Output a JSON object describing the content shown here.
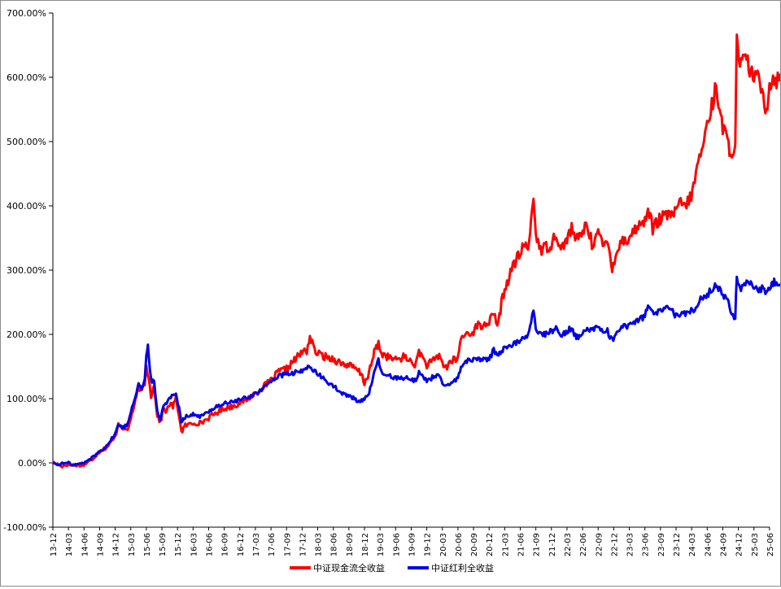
{
  "chart_data": {
    "type": "line",
    "title": "",
    "xlabel": "",
    "ylabel": "",
    "ylim": [
      -100,
      700
    ],
    "y_ticks": [
      -100,
      0,
      100,
      200,
      300,
      400,
      500,
      600,
      700
    ],
    "y_tick_labels": [
      "-100.00%",
      "0.00%",
      "100.00%",
      "200.00%",
      "300.00%",
      "400.00%",
      "500.00%",
      "600.00%",
      "700.00%"
    ],
    "x_tick_labels": [
      "13-12",
      "14-03",
      "14-06",
      "14-09",
      "14-12",
      "15-03",
      "15-06",
      "15-09",
      "15-12",
      "16-03",
      "16-06",
      "16-09",
      "16-12",
      "17-03",
      "17-06",
      "17-09",
      "17-12",
      "18-03",
      "18-06",
      "18-09",
      "18-12",
      "19-03",
      "19-06",
      "19-09",
      "19-12",
      "20-03",
      "20-06",
      "20-09",
      "20-12",
      "21-03",
      "21-06",
      "21-09",
      "21-12",
      "22-03",
      "22-06",
      "22-09",
      "22-12",
      "23-03",
      "23-06",
      "23-09",
      "23-12",
      "24-03",
      "24-06",
      "24-09",
      "24-12",
      "25-03",
      "25-06"
    ],
    "legend_position": "bottom",
    "grid": false,
    "x_unit": "quarters since 13-12",
    "series": [
      {
        "name": "中证现金流全收益",
        "color": "#ff0000",
        "points": [
          [
            0,
            0
          ],
          [
            0.3,
            -2
          ],
          [
            0.6,
            -5
          ],
          [
            1,
            -2
          ],
          [
            1.3,
            -4
          ],
          [
            1.6,
            -3
          ],
          [
            2,
            -3
          ],
          [
            2.5,
            5
          ],
          [
            3,
            18
          ],
          [
            3.5,
            25
          ],
          [
            4,
            40
          ],
          [
            4.2,
            62
          ],
          [
            4.5,
            55
          ],
          [
            4.8,
            50
          ],
          [
            5,
            70
          ],
          [
            5.3,
            95
          ],
          [
            5.5,
            120
          ],
          [
            5.7,
            110
          ],
          [
            5.9,
            125
          ],
          [
            6,
            150
          ],
          [
            6.15,
            135
          ],
          [
            6.3,
            105
          ],
          [
            6.5,
            120
          ],
          [
            6.7,
            75
          ],
          [
            6.9,
            62
          ],
          [
            7.1,
            85
          ],
          [
            7.3,
            80
          ],
          [
            7.5,
            92
          ],
          [
            7.7,
            88
          ],
          [
            7.9,
            100
          ],
          [
            8.1,
            75
          ],
          [
            8.25,
            48
          ],
          [
            8.5,
            58
          ],
          [
            9,
            62
          ],
          [
            9.5,
            62
          ],
          [
            10,
            70
          ],
          [
            10.5,
            78
          ],
          [
            11,
            85
          ],
          [
            11.5,
            88
          ],
          [
            12,
            93
          ],
          [
            12.5,
            100
          ],
          [
            13,
            108
          ],
          [
            13.5,
            118
          ],
          [
            14,
            128
          ],
          [
            14.5,
            142
          ],
          [
            15,
            146
          ],
          [
            15.5,
            160
          ],
          [
            16,
            172
          ],
          [
            16.3,
            175
          ],
          [
            16.5,
            196
          ],
          [
            16.8,
            175
          ],
          [
            17,
            170
          ],
          [
            17.5,
            165
          ],
          [
            18,
            162
          ],
          [
            18.5,
            155
          ],
          [
            19,
            152
          ],
          [
            19.5,
            145
          ],
          [
            19.8,
            138
          ],
          [
            20,
            125
          ],
          [
            20.3,
            140
          ],
          [
            20.7,
            178
          ],
          [
            20.9,
            185
          ],
          [
            21.1,
            170
          ],
          [
            21.5,
            165
          ],
          [
            22,
            160
          ],
          [
            22.5,
            165
          ],
          [
            23,
            158
          ],
          [
            23.3,
            152
          ],
          [
            23.5,
            175
          ],
          [
            23.7,
            165
          ],
          [
            24,
            152
          ],
          [
            24.5,
            160
          ],
          [
            24.8,
            168
          ],
          [
            25,
            155
          ],
          [
            25.3,
            148
          ],
          [
            25.5,
            158
          ],
          [
            26,
            162
          ],
          [
            26.2,
            195
          ],
          [
            26.5,
            200
          ],
          [
            27,
            205
          ],
          [
            27.3,
            215
          ],
          [
            27.5,
            212
          ],
          [
            28,
            220
          ],
          [
            28.3,
            230
          ],
          [
            28.6,
            215
          ],
          [
            28.8,
            250
          ],
          [
            29,
            270
          ],
          [
            29.3,
            290
          ],
          [
            29.6,
            310
          ],
          [
            30,
            325
          ],
          [
            30.2,
            340
          ],
          [
            30.5,
            330
          ],
          [
            30.7,
            380
          ],
          [
            30.85,
            410
          ],
          [
            31,
            360
          ],
          [
            31.3,
            330
          ],
          [
            31.6,
            335
          ],
          [
            32,
            340
          ],
          [
            32.3,
            360
          ],
          [
            32.6,
            330
          ],
          [
            33,
            350
          ],
          [
            33.3,
            365
          ],
          [
            33.6,
            345
          ],
          [
            34,
            360
          ],
          [
            34.3,
            372
          ],
          [
            34.6,
            340
          ],
          [
            35,
            360
          ],
          [
            35.3,
            335
          ],
          [
            35.6,
            345
          ],
          [
            35.9,
            305
          ],
          [
            36.2,
            330
          ],
          [
            36.5,
            345
          ],
          [
            37,
            350
          ],
          [
            37.5,
            368
          ],
          [
            38,
            375
          ],
          [
            38.2,
            400
          ],
          [
            38.5,
            365
          ],
          [
            39,
            380
          ],
          [
            39.5,
            385
          ],
          [
            40,
            390
          ],
          [
            40.3,
            405
          ],
          [
            40.6,
            400
          ],
          [
            40.9,
            410
          ],
          [
            41.2,
            440
          ],
          [
            41.5,
            475
          ],
          [
            41.8,
            500
          ],
          [
            42,
            530
          ],
          [
            42.3,
            555
          ],
          [
            42.5,
            580
          ],
          [
            42.8,
            560
          ],
          [
            43,
            520
          ],
          [
            43.3,
            500
          ],
          [
            43.5,
            485
          ],
          [
            43.8,
            492
          ],
          [
            43.9,
            655
          ],
          [
            44.1,
            610
          ],
          [
            44.3,
            630
          ],
          [
            44.6,
            620
          ],
          [
            45,
            600
          ],
          [
            45.3,
            595
          ],
          [
            45.6,
            580
          ],
          [
            45.8,
            545
          ],
          [
            46,
            590
          ],
          [
            46.3,
            600
          ],
          [
            46.6,
            595
          ],
          [
            46.8,
            600
          ]
        ]
      },
      {
        "name": "中证红利全收益",
        "color": "#0000e6",
        "points": [
          [
            0,
            0
          ],
          [
            0.3,
            -3
          ],
          [
            0.6,
            -1
          ],
          [
            1,
            0
          ],
          [
            1.3,
            -3
          ],
          [
            1.6,
            -2
          ],
          [
            2,
            0
          ],
          [
            2.5,
            8
          ],
          [
            3,
            18
          ],
          [
            3.5,
            28
          ],
          [
            4,
            45
          ],
          [
            4.2,
            60
          ],
          [
            4.5,
            55
          ],
          [
            4.8,
            60
          ],
          [
            5,
            80
          ],
          [
            5.3,
            105
          ],
          [
            5.5,
            125
          ],
          [
            5.7,
            115
          ],
          [
            5.9,
            130
          ],
          [
            6,
            165
          ],
          [
            6.1,
            180
          ],
          [
            6.3,
            130
          ],
          [
            6.5,
            125
          ],
          [
            6.7,
            80
          ],
          [
            6.9,
            68
          ],
          [
            7.1,
            90
          ],
          [
            7.3,
            95
          ],
          [
            7.5,
            100
          ],
          [
            7.7,
            105
          ],
          [
            7.9,
            110
          ],
          [
            8.1,
            85
          ],
          [
            8.25,
            65
          ],
          [
            8.5,
            72
          ],
          [
            9,
            75
          ],
          [
            9.5,
            72
          ],
          [
            10,
            80
          ],
          [
            10.5,
            88
          ],
          [
            11,
            92
          ],
          [
            11.5,
            95
          ],
          [
            12,
            98
          ],
          [
            12.5,
            102
          ],
          [
            13,
            108
          ],
          [
            13.5,
            115
          ],
          [
            14,
            128
          ],
          [
            14.5,
            135
          ],
          [
            15,
            138
          ],
          [
            15.5,
            140
          ],
          [
            16,
            142
          ],
          [
            16.3,
            148
          ],
          [
            16.5,
            152
          ],
          [
            16.8,
            142
          ],
          [
            17,
            138
          ],
          [
            17.5,
            128
          ],
          [
            18,
            120
          ],
          [
            18.5,
            108
          ],
          [
            19,
            104
          ],
          [
            19.5,
            98
          ],
          [
            19.8,
            96
          ],
          [
            20,
            100
          ],
          [
            20.3,
            110
          ],
          [
            20.7,
            145
          ],
          [
            20.9,
            160
          ],
          [
            21.1,
            140
          ],
          [
            21.5,
            135
          ],
          [
            22,
            133
          ],
          [
            22.5,
            133
          ],
          [
            23,
            130
          ],
          [
            23.3,
            128
          ],
          [
            23.5,
            142
          ],
          [
            23.7,
            135
          ],
          [
            24,
            128
          ],
          [
            24.5,
            135
          ],
          [
            24.8,
            138
          ],
          [
            25,
            122
          ],
          [
            25.3,
            118
          ],
          [
            25.5,
            122
          ],
          [
            26,
            132
          ],
          [
            26.2,
            150
          ],
          [
            26.5,
            158
          ],
          [
            27,
            160
          ],
          [
            27.3,
            165
          ],
          [
            27.5,
            160
          ],
          [
            28,
            162
          ],
          [
            28.3,
            175
          ],
          [
            28.6,
            170
          ],
          [
            28.8,
            175
          ],
          [
            29,
            178
          ],
          [
            29.3,
            182
          ],
          [
            29.6,
            185
          ],
          [
            30,
            192
          ],
          [
            30.2,
            195
          ],
          [
            30.5,
            200
          ],
          [
            30.7,
            220
          ],
          [
            30.85,
            235
          ],
          [
            31,
            210
          ],
          [
            31.3,
            200
          ],
          [
            31.6,
            200
          ],
          [
            32,
            205
          ],
          [
            32.3,
            210
          ],
          [
            32.6,
            200
          ],
          [
            33,
            205
          ],
          [
            33.3,
            210
          ],
          [
            33.6,
            195
          ],
          [
            34,
            200
          ],
          [
            34.3,
            210
          ],
          [
            34.6,
            205
          ],
          [
            35,
            212
          ],
          [
            35.3,
            208
          ],
          [
            35.6,
            205
          ],
          [
            35.9,
            190
          ],
          [
            36.2,
            205
          ],
          [
            36.5,
            210
          ],
          [
            37,
            215
          ],
          [
            37.5,
            222
          ],
          [
            38,
            228
          ],
          [
            38.2,
            245
          ],
          [
            38.5,
            232
          ],
          [
            39,
            235
          ],
          [
            39.5,
            240
          ],
          [
            40,
            230
          ],
          [
            40.3,
            232
          ],
          [
            40.6,
            232
          ],
          [
            40.9,
            235
          ],
          [
            41.2,
            240
          ],
          [
            41.5,
            255
          ],
          [
            41.8,
            258
          ],
          [
            42,
            262
          ],
          [
            42.3,
            270
          ],
          [
            42.5,
            275
          ],
          [
            42.8,
            270
          ],
          [
            43,
            262
          ],
          [
            43.3,
            255
          ],
          [
            43.5,
            232
          ],
          [
            43.8,
            228
          ],
          [
            43.9,
            290
          ],
          [
            44.1,
            270
          ],
          [
            44.3,
            275
          ],
          [
            44.6,
            285
          ],
          [
            45,
            275
          ],
          [
            45.3,
            270
          ],
          [
            45.6,
            272
          ],
          [
            45.8,
            262
          ],
          [
            46,
            275
          ],
          [
            46.3,
            282
          ],
          [
            46.6,
            280
          ],
          [
            46.8,
            285
          ]
        ]
      }
    ]
  }
}
